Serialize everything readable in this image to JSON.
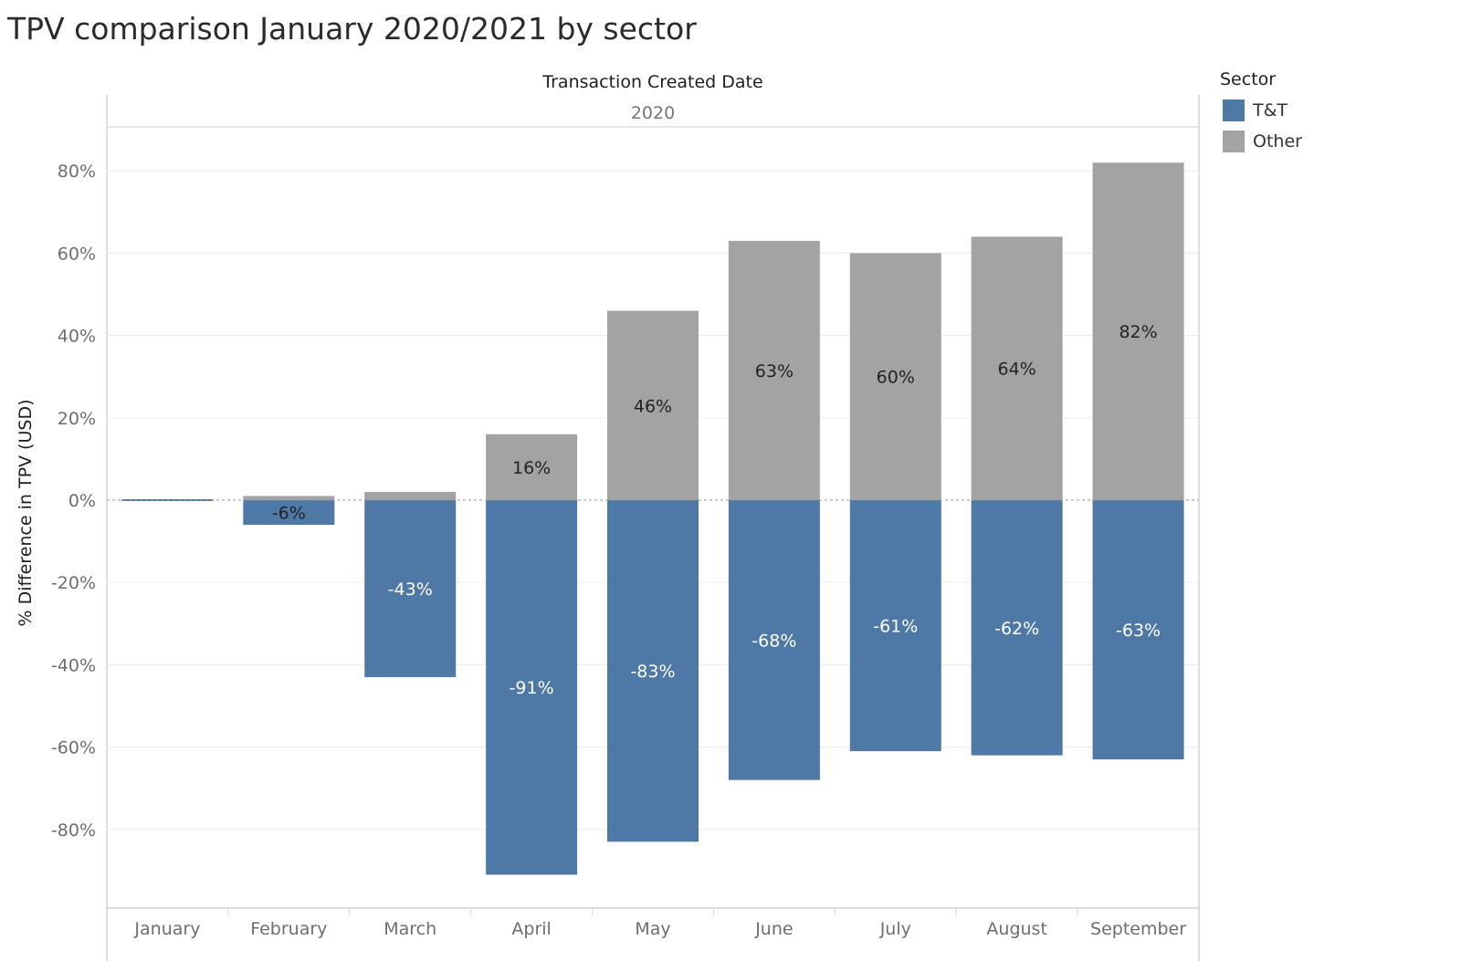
{
  "title": "TPV comparison January 2020/2021 by sector",
  "legend": {
    "title": "Sector",
    "items": [
      {
        "label": "T&T",
        "color": "#4e79a7"
      },
      {
        "label": "Other",
        "color": "#a3a3a3"
      }
    ]
  },
  "chart_data": {
    "type": "bar",
    "stacked": true,
    "title": "TPV comparison January 2020/2021 by sector",
    "column_header": "Transaction Created Date",
    "column_year": "2020",
    "xlabel": "",
    "ylabel": "% Difference in TPV (USD)",
    "categories": [
      "January",
      "February",
      "March",
      "April",
      "May",
      "June",
      "July",
      "August",
      "September"
    ],
    "series": [
      {
        "name": "T&T",
        "color": "#4e79a7",
        "values": [
          0,
          -6,
          -43,
          -91,
          -83,
          -68,
          -61,
          -62,
          -63
        ],
        "data_labels": [
          "",
          "-6%",
          "-43%",
          "-91%",
          "-83%",
          "-68%",
          "-61%",
          "-62%",
          "-63%"
        ]
      },
      {
        "name": "Other",
        "color": "#a3a3a3",
        "values": [
          0,
          1,
          2,
          16,
          46,
          63,
          60,
          64,
          82
        ],
        "data_labels": [
          "",
          "",
          "",
          "16%",
          "46%",
          "63%",
          "60%",
          "64%",
          "82%"
        ]
      }
    ],
    "yticks": [
      -80,
      -60,
      -40,
      -20,
      0,
      20,
      40,
      60,
      80
    ],
    "ytick_labels": [
      "-80%",
      "-60%",
      "-40%",
      "-20%",
      "0%",
      "20%",
      "40%",
      "60%",
      "80%"
    ],
    "ylim": [
      -99,
      91
    ],
    "grid": true,
    "legend_position": "right"
  }
}
